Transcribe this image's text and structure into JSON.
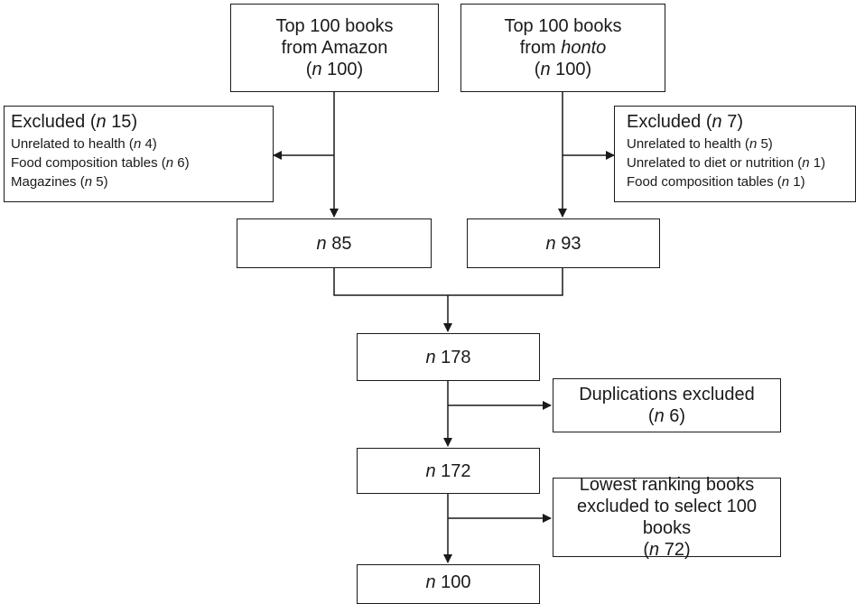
{
  "source_amazon": {
    "line1": "Top 100 books",
    "line2": "from Amazon",
    "n_symbol": "n",
    "count": "100"
  },
  "source_honto": {
    "line1": "Top 100 books",
    "line2_prefix": "from ",
    "line2_name": "honto",
    "n_symbol": "n",
    "count": "100"
  },
  "excluded_amazon": {
    "label": "Excluded",
    "n_symbol": "n",
    "count": "15",
    "reasons": [
      {
        "text": "Unrelated to health",
        "count": "4"
      },
      {
        "text": "Food composition tables",
        "count": "6"
      },
      {
        "text": "Magazines",
        "count": "5"
      }
    ]
  },
  "excluded_honto": {
    "label": "Excluded",
    "n_symbol": "n",
    "count": "7",
    "reasons": [
      {
        "text": "Unrelated to health",
        "count": "5"
      },
      {
        "text": "Unrelated to diet or nutrition",
        "count": "1"
      },
      {
        "text": "Food composition tables",
        "count": "1"
      }
    ]
  },
  "after_amazon": {
    "n_symbol": "n",
    "count": "85"
  },
  "after_honto": {
    "n_symbol": "n",
    "count": "93"
  },
  "combined": {
    "n_symbol": "n",
    "count": "178"
  },
  "duplications": {
    "label": "Duplications excluded",
    "n_symbol": "n",
    "count": "6"
  },
  "deduplicated": {
    "n_symbol": "n",
    "count": "172"
  },
  "lowest_ranking": {
    "line1": "Lowest ranking books",
    "line2": "excluded to select 100 books",
    "n_symbol": "n",
    "count": "72"
  },
  "final": {
    "n_symbol": "n",
    "count": "100"
  }
}
